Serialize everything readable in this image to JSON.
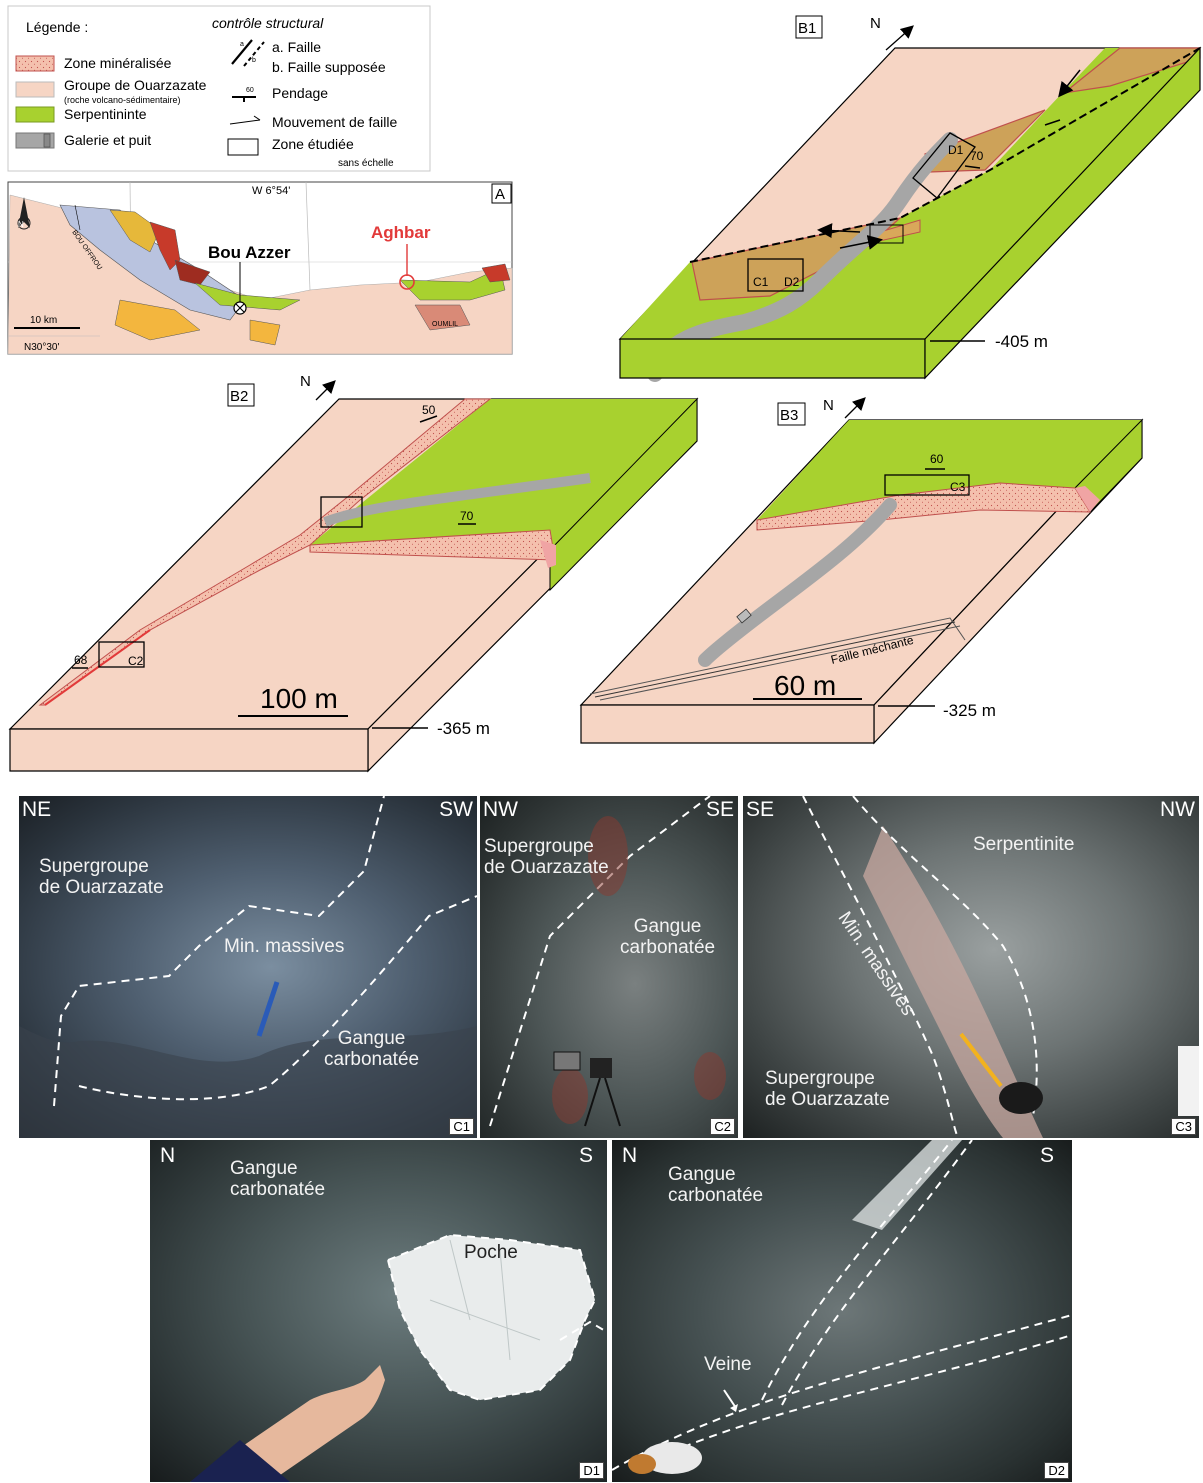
{
  "legend": {
    "title": "Légende :",
    "items": [
      {
        "label": "Zone minéralisée",
        "sub": "",
        "color": "#f4c6b3"
      },
      {
        "label": "Groupe de Ouarzazate",
        "sub": "(roche volcano-sédimentaire)",
        "color": "#f6d5c4"
      },
      {
        "label": "Serpentininte",
        "sub": "",
        "color": "#a8d12f"
      },
      {
        "label": "Galerie et puit",
        "sub": "",
        "color": "#a6a6a6"
      }
    ],
    "structural_title": "contrôle structural",
    "fault_a": "a. Faille",
    "fault_b": "b. Faille supposée",
    "fault_letter_a": "a",
    "fault_letter_b": "b",
    "dip_label": "Pendage",
    "dip_value": "60",
    "movement_label": "Mouvement de faille",
    "zone_label": "Zone étudiée",
    "scale_note": "sans échelle"
  },
  "map_a": {
    "panel": "A",
    "longitude": "W 6°54'",
    "latitude": "N30°30'",
    "scale": "10 km",
    "north": "N",
    "town1": "Bou Azzer",
    "town2": "Aghbar",
    "place1": "BOU OFFROU",
    "place2": "OUMLIL"
  },
  "block_b1": {
    "panel": "B1",
    "north": "N",
    "depth": "-405 m",
    "dip": "70",
    "box1": "D1",
    "box2": "C1",
    "box3": "D2"
  },
  "block_b2": {
    "panel": "B2",
    "north": "N",
    "depth": "-365 m",
    "dip1": "50",
    "dip2": "70",
    "dip3": "68",
    "box": "C2",
    "scale": "100 m"
  },
  "block_b3": {
    "panel": "B3",
    "north": "N",
    "depth": "-325 m",
    "dip": "60",
    "box": "C3",
    "fault": "Faille méchante",
    "scale": "60 m"
  },
  "photos": {
    "c1": {
      "left": "NE",
      "right": "SW",
      "l1": "Supergroupe\nde Ouarzazate",
      "l2": "Min. massives",
      "l3": "Gangue\ncarbonatée",
      "tag": "C1"
    },
    "c2": {
      "left": "NW",
      "right": "SE",
      "l1": "Supergroupe\nde Ouarzazate",
      "l2": "Gangue\ncarbonatée",
      "tag": "C2"
    },
    "c3": {
      "left": "SE",
      "right": "NW",
      "l1": "Serpentinite",
      "l2": "Min. massives",
      "l3": "Supergroupe\nde Ouarzazate",
      "tag": "C3"
    },
    "d1": {
      "left": "N",
      "right": "S",
      "l1": "Gangue\ncarbonatée",
      "l2": "Poche",
      "tag": "D1"
    },
    "d2": {
      "left": "N",
      "right": "S",
      "l1": "Gangue\ncarbonatée",
      "l2": "Veine",
      "tag": "D2"
    }
  }
}
